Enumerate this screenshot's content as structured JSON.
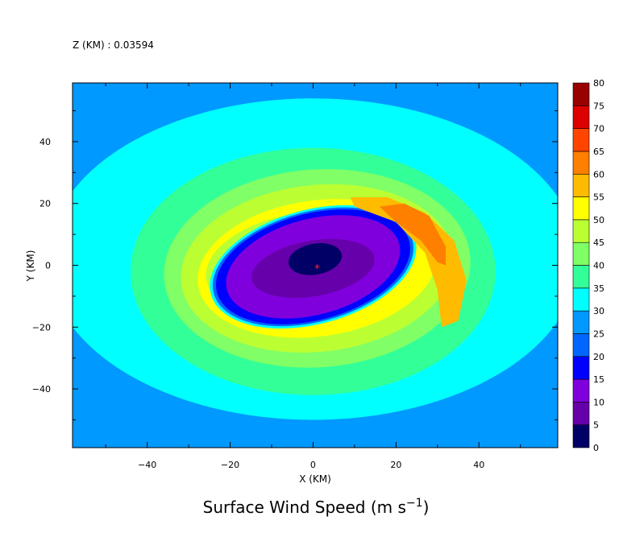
{
  "chart_data": {
    "type": "heatmap",
    "title": "Surface Wind Speed (m s",
    "title_sup": "−1",
    "title_close": ")",
    "subtitle": "Z (KM) : 0.03594",
    "xlabel": "X (KM)",
    "ylabel": "Y (KM)",
    "xlim": [
      -58,
      59
    ],
    "ylim": [
      -59,
      59
    ],
    "x_ticks": [
      -40,
      -20,
      0,
      20,
      40
    ],
    "y_ticks": [
      -40,
      -20,
      0,
      20,
      40
    ],
    "x_tick_labels": [
      "−40",
      "−20",
      "0",
      "20",
      "40"
    ],
    "y_tick_labels": [
      "−40",
      "−20",
      "0",
      "20",
      "40"
    ],
    "center": {
      "x": 1,
      "y": -1,
      "marker": "*",
      "color": "#ff2020"
    },
    "colorbar": {
      "levels": [
        0,
        5,
        10,
        15,
        20,
        25,
        30,
        35,
        40,
        45,
        50,
        55,
        60,
        65,
        70,
        75,
        80
      ],
      "labels": [
        "0",
        "5",
        "10",
        "15",
        "20",
        "25",
        "30",
        "35",
        "40",
        "45",
        "50",
        "55",
        "60",
        "65",
        "70",
        "75",
        "80"
      ],
      "colors": [
        "#000066",
        "#6600aa",
        "#8000dd",
        "#0000ff",
        "#0066ff",
        "#0099ff",
        "#00ffff",
        "#33ff99",
        "#80ff66",
        "#bbff33",
        "#ffff00",
        "#ffbb00",
        "#ff7f00",
        "#ff4400",
        "#dd0000",
        "#990000"
      ]
    },
    "background_level": 25,
    "contours": [
      {
        "level": 30,
        "center": [
          0,
          2
        ],
        "rx": 64,
        "ry": 52,
        "rot": 0
      },
      {
        "level": 35,
        "center": [
          0,
          -2
        ],
        "rx": 44,
        "ry": 40,
        "rot": 0
      },
      {
        "level": 40,
        "center": [
          1,
          -1
        ],
        "rx": 37,
        "ry": 32,
        "rot": -4
      },
      {
        "level": 45,
        "center": [
          1,
          -1
        ],
        "rx": 33,
        "ry": 27,
        "rot": -6
      },
      {
        "level": 50,
        "center": [
          1,
          -1
        ],
        "rx": 29,
        "ry": 22,
        "rot": -8
      },
      {
        "level": 45,
        "center": [
          -2,
          0
        ],
        "rx": 24,
        "ry": 17,
        "rot": -8
      },
      {
        "level": 40,
        "center": [
          -1,
          0
        ],
        "rx": 22.5,
        "ry": 15.5,
        "rot": -8
      },
      {
        "level": 35,
        "center": [
          0,
          0
        ],
        "rx": 21,
        "ry": 14,
        "rot": -8
      },
      {
        "level": 30,
        "center": [
          0,
          -0.5
        ],
        "rx": 25.5,
        "ry": 18.5,
        "rot": -15
      },
      {
        "level": 20,
        "center": [
          0,
          -0.5
        ],
        "rx": 24.8,
        "ry": 17.8,
        "rot": -15
      },
      {
        "level": 15,
        "center": [
          0,
          -0.5
        ],
        "rx": 24,
        "ry": 17.2,
        "rot": -15
      },
      {
        "level": 10,
        "center": [
          0,
          -0.5
        ],
        "rx": 21.5,
        "ry": 15.5,
        "rot": -15
      },
      {
        "level": 5,
        "center": [
          0,
          -1
        ],
        "rx": 15,
        "ry": 9,
        "rot": -10
      },
      {
        "level": 0,
        "center": [
          0.5,
          2
        ],
        "rx": 6.5,
        "ry": 5,
        "rot": -10
      }
    ],
    "max_band": {
      "level": 55,
      "level_inner": 60
    }
  }
}
